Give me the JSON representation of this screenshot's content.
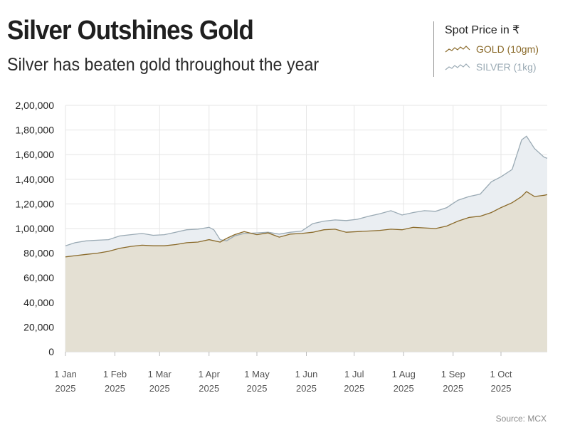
{
  "header": {
    "title": "Silver Outshines Gold",
    "subtitle": "Silver has beaten gold throughout the year"
  },
  "legend": {
    "title": "Spot Price in ₹",
    "items": [
      {
        "label": "GOLD (10gm)",
        "color": "#8a6a2a",
        "icon": "gold-line-icon"
      },
      {
        "label": "SILVER (1kg)",
        "color": "#9aaab4",
        "icon": "silver-line-icon"
      }
    ]
  },
  "source": "Source: MCX",
  "chart_data": {
    "type": "area",
    "title": "Silver Outshines Gold",
    "subtitle": "Silver has beaten gold throughout the year",
    "xlabel": "",
    "ylabel": "",
    "ylim": [
      0,
      200000
    ],
    "grid": true,
    "legend_position": "top-right",
    "y_ticks": [
      {
        "value": 0,
        "label": "0"
      },
      {
        "value": 20000,
        "label": "20,000"
      },
      {
        "value": 40000,
        "label": "40,000"
      },
      {
        "value": 60000,
        "label": "60,000"
      },
      {
        "value": 80000,
        "label": "80,000"
      },
      {
        "value": 100000,
        "label": "1,00,000"
      },
      {
        "value": 120000,
        "label": "1,20,000"
      },
      {
        "value": 140000,
        "label": "1,40,000"
      },
      {
        "value": 160000,
        "label": "1,60,000"
      },
      {
        "value": 180000,
        "label": "1,80,000"
      },
      {
        "value": 200000,
        "label": "2,00,000"
      }
    ],
    "x_ticks": [
      {
        "date": "2025-01-01",
        "label": [
          "1 Jan",
          "2025"
        ]
      },
      {
        "date": "2025-02-01",
        "label": [
          "1 Feb",
          "2025"
        ]
      },
      {
        "date": "2025-03-01",
        "label": [
          "1 Mar",
          "2025"
        ]
      },
      {
        "date": "2025-04-01",
        "label": [
          "1 Apr",
          "2025"
        ]
      },
      {
        "date": "2025-05-01",
        "label": [
          "1 May",
          "2025"
        ]
      },
      {
        "date": "2025-06-01",
        "label": [
          "1 Jun",
          "2025"
        ]
      },
      {
        "date": "2025-07-01",
        "label": [
          "1 Jul",
          "2025"
        ]
      },
      {
        "date": "2025-08-01",
        "label": [
          "1 Aug",
          "2025"
        ]
      },
      {
        "date": "2025-09-01",
        "label": [
          "1 Sep",
          "2025"
        ]
      },
      {
        "date": "2025-10-01",
        "label": [
          "1 Oct",
          "2025"
        ]
      }
    ],
    "xlim": [
      "2025-01-01",
      "2025-10-30"
    ],
    "series": [
      {
        "name": "SILVER (1kg)",
        "color": "#9aaab4",
        "fill": "#eaeef2",
        "points": [
          [
            "2025-01-01",
            86000
          ],
          [
            "2025-01-07",
            88500
          ],
          [
            "2025-01-14",
            90000
          ],
          [
            "2025-01-21",
            90500
          ],
          [
            "2025-01-28",
            91000
          ],
          [
            "2025-02-04",
            94000
          ],
          [
            "2025-02-11",
            95000
          ],
          [
            "2025-02-18",
            96000
          ],
          [
            "2025-02-25",
            94500
          ],
          [
            "2025-03-04",
            95000
          ],
          [
            "2025-03-11",
            97000
          ],
          [
            "2025-03-18",
            99000
          ],
          [
            "2025-03-25",
            99500
          ],
          [
            "2025-04-01",
            101000
          ],
          [
            "2025-04-04",
            99000
          ],
          [
            "2025-04-08",
            91000
          ],
          [
            "2025-04-12",
            90000
          ],
          [
            "2025-04-17",
            94000
          ],
          [
            "2025-04-23",
            96000
          ],
          [
            "2025-05-01",
            96500
          ],
          [
            "2025-05-08",
            97000
          ],
          [
            "2025-05-15",
            95500
          ],
          [
            "2025-05-22",
            97000
          ],
          [
            "2025-05-29",
            98000
          ],
          [
            "2025-06-05",
            104000
          ],
          [
            "2025-06-12",
            106000
          ],
          [
            "2025-06-19",
            107000
          ],
          [
            "2025-06-26",
            106500
          ],
          [
            "2025-07-03",
            107500
          ],
          [
            "2025-07-10",
            110000
          ],
          [
            "2025-07-17",
            112000
          ],
          [
            "2025-07-24",
            114500
          ],
          [
            "2025-07-31",
            111000
          ],
          [
            "2025-08-07",
            113000
          ],
          [
            "2025-08-14",
            114500
          ],
          [
            "2025-08-21",
            114000
          ],
          [
            "2025-08-28",
            117000
          ],
          [
            "2025-09-04",
            123000
          ],
          [
            "2025-09-11",
            126000
          ],
          [
            "2025-09-18",
            128000
          ],
          [
            "2025-09-25",
            138000
          ],
          [
            "2025-10-01",
            142000
          ],
          [
            "2025-10-08",
            148000
          ],
          [
            "2025-10-14",
            172000
          ],
          [
            "2025-10-17",
            175000
          ],
          [
            "2025-10-22",
            165000
          ],
          [
            "2025-10-28",
            158000
          ],
          [
            "2025-10-30",
            157000
          ]
        ]
      },
      {
        "name": "GOLD (10gm)",
        "color": "#8a6a2a",
        "fill": "#e4e0d3",
        "points": [
          [
            "2025-01-01",
            77000
          ],
          [
            "2025-01-07",
            78000
          ],
          [
            "2025-01-14",
            79000
          ],
          [
            "2025-01-21",
            80000
          ],
          [
            "2025-01-28",
            81500
          ],
          [
            "2025-02-04",
            84000
          ],
          [
            "2025-02-11",
            85500
          ],
          [
            "2025-02-18",
            86500
          ],
          [
            "2025-02-25",
            86000
          ],
          [
            "2025-03-04",
            86000
          ],
          [
            "2025-03-11",
            87000
          ],
          [
            "2025-03-18",
            88500
          ],
          [
            "2025-03-25",
            89000
          ],
          [
            "2025-04-01",
            91000
          ],
          [
            "2025-04-08",
            89000
          ],
          [
            "2025-04-12",
            92000
          ],
          [
            "2025-04-17",
            95000
          ],
          [
            "2025-04-23",
            97500
          ],
          [
            "2025-05-01",
            95000
          ],
          [
            "2025-05-08",
            96500
          ],
          [
            "2025-05-15",
            93000
          ],
          [
            "2025-05-22",
            95500
          ],
          [
            "2025-05-29",
            96000
          ],
          [
            "2025-06-05",
            97000
          ],
          [
            "2025-06-12",
            99000
          ],
          [
            "2025-06-19",
            99500
          ],
          [
            "2025-06-26",
            97000
          ],
          [
            "2025-07-03",
            97500
          ],
          [
            "2025-07-10",
            98000
          ],
          [
            "2025-07-17",
            98500
          ],
          [
            "2025-07-24",
            99500
          ],
          [
            "2025-07-31",
            99000
          ],
          [
            "2025-08-07",
            101000
          ],
          [
            "2025-08-14",
            100500
          ],
          [
            "2025-08-21",
            100000
          ],
          [
            "2025-08-28",
            102000
          ],
          [
            "2025-09-04",
            106000
          ],
          [
            "2025-09-11",
            109000
          ],
          [
            "2025-09-18",
            110000
          ],
          [
            "2025-09-25",
            113000
          ],
          [
            "2025-10-01",
            117000
          ],
          [
            "2025-10-08",
            121000
          ],
          [
            "2025-10-14",
            126000
          ],
          [
            "2025-10-17",
            130000
          ],
          [
            "2025-10-22",
            126000
          ],
          [
            "2025-10-28",
            127000
          ],
          [
            "2025-10-30",
            127500
          ]
        ]
      }
    ]
  }
}
